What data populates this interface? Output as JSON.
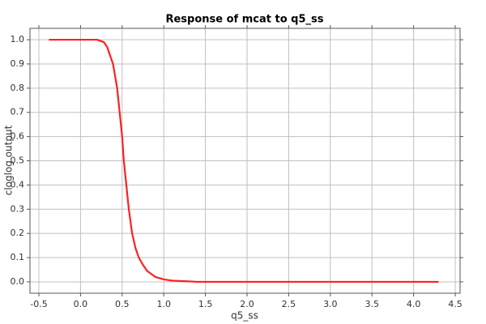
{
  "chart_data": {
    "type": "line",
    "title": "Response of mcat to q5_ss",
    "x_label": "q5_ss",
    "y_label": "cloglog output",
    "x": [
      -0.38,
      0.2,
      0.28,
      0.32,
      0.36,
      0.39,
      0.44,
      0.47,
      0.5,
      0.52,
      0.55,
      0.58,
      0.62,
      0.66,
      0.7,
      0.75,
      0.8,
      0.9,
      1.0,
      1.1,
      1.3,
      1.4,
      4.3
    ],
    "values": [
      1.0,
      1.0,
      0.99,
      0.97,
      0.93,
      0.9,
      0.8,
      0.7,
      0.6,
      0.5,
      0.4,
      0.3,
      0.2,
      0.14,
      0.1,
      0.07,
      0.045,
      0.02,
      0.01,
      0.005,
      0.002,
      0.0,
      0.0
    ],
    "color": "#ff2020",
    "xlim": [
      -0.607,
      4.558
    ],
    "ylim": [
      -0.047,
      1.047
    ],
    "xticks": [
      -0.5,
      {
        "value": 0,
        "label": "0.0"
      },
      0.5,
      {
        "value": 1,
        "label": "1.0"
      },
      1.5,
      {
        "value": 2,
        "label": "2.0"
      },
      2.5,
      {
        "value": 3,
        "label": "3.0"
      },
      3.5,
      {
        "value": 4,
        "label": "4.0"
      },
      4.5
    ],
    "yticks": [
      {
        "value": 0,
        "label": "0.0"
      },
      0.1,
      0.2,
      0.3,
      0.4,
      0.5,
      0.6,
      0.7,
      0.8,
      0.9,
      {
        "value": 1,
        "label": "1.0"
      }
    ],
    "grid": true
  }
}
